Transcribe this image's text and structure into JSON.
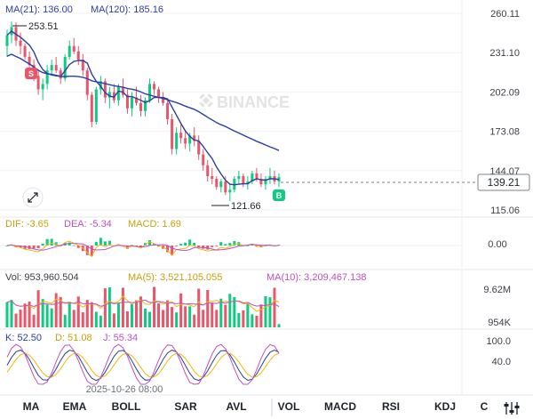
{
  "legend_ma": {
    "ma21": "MA(21): 136.00",
    "ma120": "MA(120): 185.16",
    "ma21_color": "#e0a030",
    "ma120_color": "#2a3fa0"
  },
  "watermark": "BINANCE",
  "price_axis_labels": [
    "260.11",
    "231.10",
    "202.09",
    "173.08",
    "144.07",
    "115.06"
  ],
  "current_price": "139.21",
  "high_label": "253.51",
  "low_label": "121.66",
  "marker_sell": "S",
  "marker_buy": "B",
  "macd_legend": {
    "dif": "DIF: -3.65",
    "dea": "DEA: -5.34",
    "macd": "MACD: 1.69"
  },
  "macd_axis_labels": [
    "0.00"
  ],
  "vol_legend": {
    "vol": "Vol: 953,960.504",
    "ma5": "MA(5): 3,521,105.055",
    "ma10": "MA(10): 3,209,467.138"
  },
  "vol_axis_labels": [
    "9.62M",
    "954K"
  ],
  "kdj_legend": {
    "k": "K: 52.50",
    "d": "D: 51.08",
    "j": "J: 55.34"
  },
  "kdj_axis_labels": [
    "100.0",
    "40.0"
  ],
  "time_label": "2025-10-26 08:00",
  "tabs": [
    "MA",
    "EMA",
    "BOLL",
    "SAR",
    "AVL",
    "VOL",
    "MACD",
    "RSI",
    "KDJ",
    "C"
  ],
  "colors": {
    "up": "#0ecb81",
    "down": "#e8566a",
    "ma_short": "#e0a030",
    "ma_long": "#2a3fa0",
    "dif": "#f0b90b",
    "dea": "#c050c0"
  },
  "chart_data": {
    "type": "candlestick",
    "ylim": [
      115.06,
      260.11
    ],
    "candles": [
      [
        236,
        248,
        228,
        244
      ],
      [
        244,
        254,
        238,
        250
      ],
      [
        250,
        253.51,
        236,
        240
      ],
      [
        240,
        246,
        230,
        236
      ],
      [
        236,
        238,
        226,
        228
      ],
      [
        228,
        232,
        218,
        222
      ],
      [
        222,
        226,
        210,
        214
      ],
      [
        214,
        218,
        200,
        204
      ],
      [
        204,
        212,
        196,
        208
      ],
      [
        208,
        222,
        204,
        218
      ],
      [
        218,
        226,
        214,
        222
      ],
      [
        222,
        228,
        216,
        218
      ],
      [
        218,
        220,
        208,
        212
      ],
      [
        212,
        230,
        210,
        228
      ],
      [
        228,
        240,
        226,
        236
      ],
      [
        236,
        242,
        230,
        232
      ],
      [
        232,
        236,
        222,
        226
      ],
      [
        226,
        230,
        214,
        218
      ],
      [
        218,
        220,
        196,
        200
      ],
      [
        200,
        202,
        176,
        180
      ],
      [
        180,
        206,
        178,
        204
      ],
      [
        204,
        214,
        200,
        210
      ],
      [
        210,
        212,
        194,
        198
      ],
      [
        198,
        206,
        190,
        202
      ],
      [
        202,
        208,
        194,
        196
      ],
      [
        196,
        208,
        192,
        206
      ],
      [
        206,
        212,
        198,
        200
      ],
      [
        200,
        204,
        186,
        190
      ],
      [
        190,
        202,
        184,
        198
      ],
      [
        198,
        206,
        192,
        194
      ],
      [
        194,
        200,
        184,
        188
      ],
      [
        188,
        198,
        184,
        196
      ],
      [
        196,
        212,
        194,
        208
      ],
      [
        208,
        210,
        200,
        204
      ],
      [
        204,
        206,
        194,
        198
      ],
      [
        198,
        202,
        192,
        194
      ],
      [
        194,
        196,
        178,
        182
      ],
      [
        182,
        186,
        156,
        160
      ],
      [
        160,
        176,
        156,
        172
      ],
      [
        172,
        178,
        164,
        168
      ],
      [
        168,
        174,
        160,
        164
      ],
      [
        164,
        172,
        158,
        170
      ],
      [
        170,
        176,
        162,
        166
      ],
      [
        166,
        170,
        152,
        156
      ],
      [
        156,
        160,
        144,
        148
      ],
      [
        148,
        152,
        136,
        140
      ],
      [
        140,
        146,
        134,
        138
      ],
      [
        138,
        140,
        130,
        132
      ],
      [
        132,
        138,
        128,
        136
      ],
      [
        136,
        140,
        126,
        128
      ],
      [
        128,
        134,
        121.66,
        130
      ],
      [
        130,
        140,
        128,
        138
      ],
      [
        138,
        144,
        134,
        140
      ],
      [
        140,
        142,
        132,
        134
      ],
      [
        134,
        140,
        130,
        136
      ],
      [
        136,
        144,
        134,
        142
      ],
      [
        142,
        146,
        136,
        138
      ],
      [
        138,
        142,
        132,
        134
      ],
      [
        134,
        140,
        130,
        138
      ],
      [
        138,
        146,
        134,
        140
      ],
      [
        140,
        144,
        134,
        136
      ],
      [
        136,
        142,
        132,
        139.21
      ]
    ],
    "ma21_current": 136.0,
    "ma120_current": 185.16,
    "macd": {
      "dif": -3.65,
      "dea": -5.34,
      "hist": 1.69
    },
    "volume_current": 953960.504,
    "vol_ma5": 3521105.055,
    "vol_ma10": 3209467.138,
    "kdj": {
      "k": 52.5,
      "d": 51.08,
      "j": 55.34
    }
  }
}
